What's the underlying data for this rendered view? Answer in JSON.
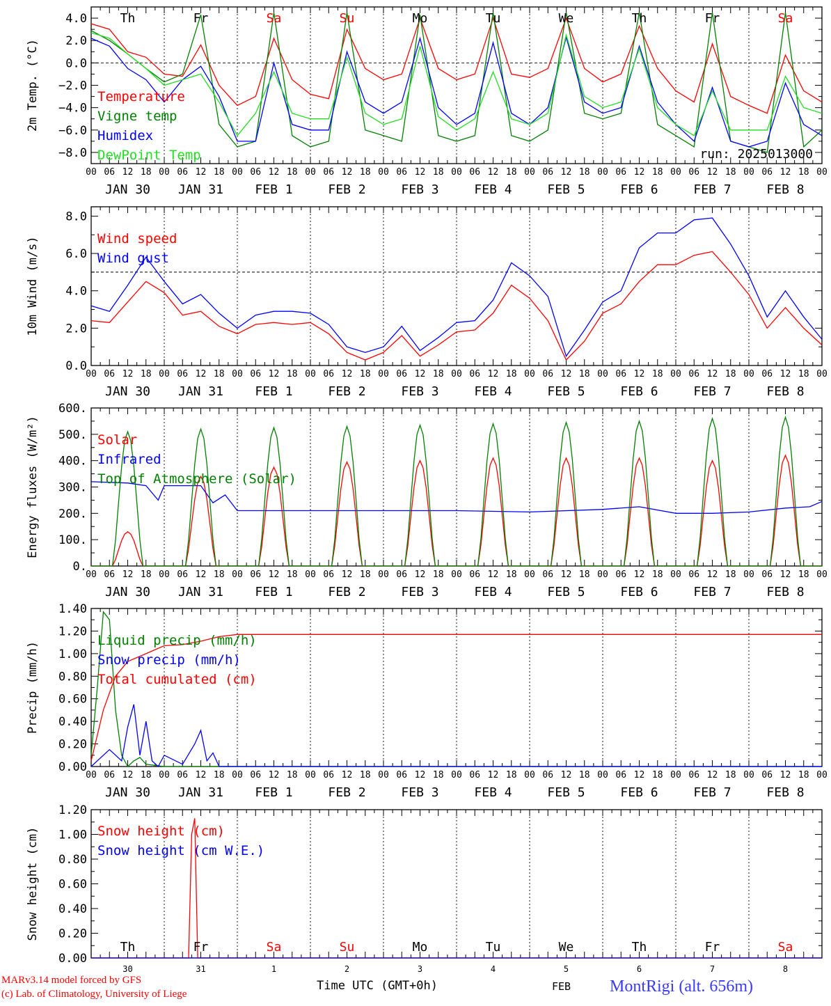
{
  "run_label": "run: 2025013000",
  "footer": {
    "credit_line1": "MARv3.14 model forced by GFS",
    "credit_line2": "(c) Lab. of Climatology, University of Liege",
    "time_axis": "Time UTC (GMT+0h)",
    "month": "FEB",
    "station": "MontRigi (alt. 656m)"
  },
  "hour_ticks": [
    "00",
    "06",
    "12",
    "18"
  ],
  "day_labels": [
    "JAN 30",
    "JAN 31",
    "FEB  1",
    "FEB  2",
    "FEB  3",
    "FEB  4",
    "FEB  5",
    "FEB  6",
    "FEB  7",
    "FEB  8"
  ],
  "weekdays": [
    "Th",
    "Fr",
    "Sa",
    "Su",
    "Mo",
    "Tu",
    "We",
    "Th",
    "Fr",
    "Sa"
  ],
  "day_numbers": [
    "30",
    "31",
    "1",
    "2",
    "3",
    "4",
    "5",
    "6",
    "7",
    "8"
  ],
  "colors": {
    "red": "#ff0000",
    "green": "#008000",
    "blue": "#0000ff",
    "lightgreen": "#22dd22",
    "weekend": "#ff0000",
    "weekday": "#000000"
  },
  "chart_data": [
    {
      "type": "line",
      "ylabel": "2m Temp. (°C)",
      "xlim": [
        0,
        240
      ],
      "ylim": [
        -9,
        5
      ],
      "yticks": [
        -8,
        -6,
        -4,
        -2,
        0,
        2,
        4
      ],
      "ytick_labels": [
        "−8.0",
        "−6.0",
        "−4.0",
        "−2.0",
        "0.0",
        "2.0",
        "4.0"
      ],
      "reference_line": 0,
      "series": [
        {
          "name": "Temperature",
          "color": "red",
          "x": [
            0,
            6,
            12,
            18,
            24,
            30,
            36,
            42,
            48,
            54,
            60,
            66,
            72,
            78,
            84,
            90,
            96,
            102,
            108,
            114,
            120,
            126,
            132,
            138,
            144,
            150,
            156,
            162,
            168,
            174,
            180,
            186,
            192,
            198,
            204,
            210,
            216,
            222,
            228,
            234,
            240
          ],
          "y": [
            3.5,
            3.0,
            1.0,
            0.5,
            -1.0,
            -1.2,
            1.6,
            -2.0,
            -3.8,
            -3.0,
            2.2,
            -1.5,
            -2.8,
            -3.2,
            3.0,
            -0.5,
            -1.5,
            -1.0,
            4.0,
            -0.5,
            -1.5,
            -1.0,
            4.0,
            -1.0,
            -1.3,
            -0.5,
            4.0,
            -0.5,
            -1.7,
            -1.0,
            3.3,
            -0.5,
            -2.5,
            -3.5,
            1.7,
            -3.0,
            -3.8,
            -4.5,
            0.7,
            -2.5,
            -3.5
          ]
        },
        {
          "name": "Vigne temp",
          "color": "green",
          "x": [
            0,
            6,
            12,
            18,
            24,
            30,
            36,
            42,
            48,
            54,
            60,
            66,
            72,
            78,
            84,
            90,
            96,
            102,
            108,
            114,
            120,
            126,
            132,
            138,
            144,
            150,
            156,
            162,
            168,
            174,
            180,
            186,
            192,
            198,
            204,
            210,
            216,
            222,
            228,
            234,
            240
          ],
          "y": [
            2.9,
            2.0,
            0.8,
            -0.5,
            -1.7,
            -1.0,
            4.3,
            -5.5,
            -7.5,
            -7.0,
            4.5,
            -6.5,
            -7.5,
            -7.0,
            4.5,
            -6.0,
            -6.5,
            -7.0,
            4.3,
            -6.5,
            -7.0,
            -6.5,
            4.5,
            -6.5,
            -7.0,
            -6.0,
            4.5,
            -4.5,
            -5.0,
            -4.5,
            4.5,
            -5.5,
            -6.5,
            -7.5,
            4.5,
            -7.0,
            -7.5,
            -8.0,
            4.5,
            -7.5,
            -6.0
          ]
        },
        {
          "name": "Humidex",
          "color": "blue",
          "x": [
            0,
            6,
            12,
            18,
            24,
            30,
            36,
            42,
            48,
            54,
            60,
            66,
            72,
            78,
            84,
            90,
            96,
            102,
            108,
            114,
            120,
            126,
            132,
            138,
            144,
            150,
            156,
            162,
            168,
            174,
            180,
            186,
            192,
            198,
            204,
            210,
            216,
            222,
            228,
            234,
            240
          ],
          "y": [
            2.2,
            1.5,
            -0.5,
            -1.5,
            -3.5,
            -1.5,
            -0.3,
            -3.0,
            -7.0,
            -7.0,
            0.0,
            -5.5,
            -6.0,
            -6.0,
            1.0,
            -3.5,
            -4.5,
            -3.5,
            2.2,
            -4.0,
            -5.5,
            -4.5,
            1.8,
            -4.5,
            -5.5,
            -4.0,
            2.3,
            -3.5,
            -4.5,
            -4.0,
            1.5,
            -3.5,
            -5.5,
            -7.0,
            -2.2,
            -7.0,
            -7.5,
            -7.0,
            -1.8,
            -5.5,
            -6.5
          ]
        },
        {
          "name": "DewPoint Temp",
          "color": "lightgreen",
          "x": [
            0,
            6,
            12,
            18,
            24,
            30,
            36,
            42,
            48,
            54,
            60,
            66,
            72,
            78,
            84,
            90,
            96,
            102,
            108,
            114,
            120,
            126,
            132,
            138,
            144,
            150,
            156,
            162,
            168,
            174,
            180,
            186,
            192,
            198,
            204,
            210,
            216,
            222,
            228,
            234,
            240
          ],
          "y": [
            2.7,
            2.2,
            0.8,
            -0.5,
            -2.0,
            -1.5,
            -1.0,
            -3.5,
            -6.5,
            -4.5,
            -0.8,
            -4.5,
            -5.0,
            -5.0,
            0.5,
            -4.5,
            -5.5,
            -5.0,
            1.5,
            -4.8,
            -6.0,
            -5.0,
            -0.8,
            -5.0,
            -5.5,
            -4.5,
            2.5,
            -3.0,
            -4.0,
            -3.5,
            1.3,
            -4.0,
            -5.5,
            -6.5,
            -2.5,
            -6.0,
            -6.0,
            -6.0,
            -1.2,
            -4.0,
            -4.5
          ]
        }
      ]
    },
    {
      "type": "line",
      "ylabel": "10m Wind (m/s)",
      "xlim": [
        0,
        240
      ],
      "ylim": [
        0,
        8.5
      ],
      "yticks": [
        0,
        2,
        4,
        6,
        8
      ],
      "ytick_labels": [
        "0.0",
        "2.0",
        "4.0",
        "6.0",
        "8.0"
      ],
      "reference_line": 5,
      "series": [
        {
          "name": "Wind speed",
          "color": "red",
          "x": [
            0,
            6,
            12,
            18,
            24,
            30,
            36,
            42,
            48,
            54,
            60,
            66,
            72,
            78,
            84,
            90,
            96,
            102,
            108,
            114,
            120,
            126,
            132,
            138,
            144,
            150,
            156,
            162,
            168,
            174,
            180,
            186,
            192,
            198,
            204,
            210,
            216,
            222,
            228,
            234,
            240
          ],
          "y": [
            2.4,
            2.3,
            3.4,
            4.5,
            3.9,
            2.7,
            2.9,
            2.1,
            1.7,
            2.2,
            2.3,
            2.2,
            2.3,
            1.7,
            0.7,
            0.3,
            0.7,
            1.6,
            0.5,
            1.1,
            1.8,
            1.9,
            2.8,
            4.3,
            3.6,
            2.4,
            0.3,
            1.3,
            2.8,
            3.3,
            4.5,
            5.4,
            5.4,
            5.9,
            6.1,
            5.0,
            3.8,
            2.0,
            3.1,
            2.0,
            1.1
          ]
        },
        {
          "name": "Wind gust",
          "color": "blue",
          "x": [
            0,
            6,
            12,
            18,
            24,
            30,
            36,
            42,
            48,
            54,
            60,
            66,
            72,
            78,
            84,
            90,
            96,
            102,
            108,
            114,
            120,
            126,
            132,
            138,
            144,
            150,
            156,
            162,
            168,
            174,
            180,
            186,
            192,
            198,
            204,
            210,
            216,
            222,
            228,
            234,
            240
          ],
          "y": [
            3.2,
            2.9,
            4.3,
            5.8,
            4.5,
            3.3,
            3.8,
            2.8,
            2.0,
            2.7,
            2.9,
            2.9,
            2.8,
            2.2,
            1.0,
            0.7,
            1.0,
            2.1,
            0.8,
            1.5,
            2.3,
            2.4,
            3.5,
            5.5,
            4.8,
            3.7,
            0.5,
            1.9,
            3.4,
            4.0,
            6.3,
            7.1,
            7.1,
            7.8,
            7.9,
            6.5,
            4.8,
            2.6,
            4.0,
            2.6,
            1.4
          ]
        }
      ]
    },
    {
      "type": "line",
      "ylabel": "Energy fluxes (W/m²)",
      "xlim": [
        0,
        240
      ],
      "ylim": [
        0,
        600
      ],
      "yticks": [
        0,
        100,
        200,
        300,
        400,
        500,
        600
      ],
      "ytick_labels": [
        "0.",
        "100.",
        "200.",
        "300.",
        "400.",
        "500.",
        "600."
      ],
      "series": [
        {
          "name": "Solar",
          "color": "red",
          "peaks": [
            130,
            340,
            375,
            395,
            400,
            410,
            410,
            410,
            400,
            420,
            410
          ]
        },
        {
          "name": "Infrared",
          "color": "blue",
          "x": [
            0,
            12,
            18,
            22,
            24,
            36,
            40,
            44,
            48,
            72,
            96,
            120,
            144,
            168,
            180,
            192,
            204,
            216,
            228,
            236,
            240
          ],
          "y": [
            320,
            315,
            305,
            250,
            305,
            305,
            240,
            270,
            210,
            210,
            210,
            210,
            205,
            215,
            225,
            200,
            200,
            205,
            220,
            225,
            245
          ]
        },
        {
          "name": "Top of Atmosphere (Solar)",
          "color": "green",
          "peaks": [
            510,
            520,
            525,
            530,
            535,
            540,
            545,
            550,
            560,
            565,
            570
          ]
        }
      ]
    },
    {
      "type": "line",
      "ylabel": "Precip (mm/h)",
      "xlim": [
        0,
        240
      ],
      "ylim": [
        0,
        1.4
      ],
      "yticks": [
        0,
        0.2,
        0.4,
        0.6,
        0.8,
        1.0,
        1.2,
        1.4
      ],
      "ytick_labels": [
        "0.00",
        "0.20",
        "0.40",
        "0.60",
        "0.80",
        "1.00",
        "1.20",
        "1.40"
      ],
      "series": [
        {
          "name": "Liquid precip (mm/h)",
          "color": "green",
          "x": [
            0,
            2,
            4,
            6,
            8,
            10,
            12,
            14,
            16,
            18,
            24,
            240
          ],
          "y": [
            0.1,
            0.7,
            1.37,
            1.3,
            0.5,
            0.1,
            0.0,
            0.05,
            0.08,
            0.02,
            0.0,
            0.0
          ]
        },
        {
          "name": "Snow precip (mm/h)",
          "color": "blue",
          "x": [
            0,
            6,
            10,
            12,
            14,
            16,
            18,
            20,
            22,
            24,
            30,
            34,
            36,
            38,
            40,
            42,
            48,
            240
          ],
          "y": [
            0.0,
            0.15,
            0.05,
            0.35,
            0.55,
            0.1,
            0.4,
            0.05,
            0.0,
            0.1,
            0.02,
            0.2,
            0.32,
            0.05,
            0.12,
            0.0,
            0.0,
            0.0
          ]
        },
        {
          "name": "Total cumulated (cm)",
          "color": "red",
          "x": [
            0,
            4,
            8,
            12,
            18,
            24,
            30,
            36,
            42,
            48,
            240
          ],
          "y": [
            0.05,
            0.5,
            0.8,
            0.93,
            1.0,
            1.07,
            1.08,
            1.11,
            1.15,
            1.17,
            1.17
          ]
        }
      ]
    },
    {
      "type": "line",
      "ylabel": "Snow height (cm)",
      "xlim": [
        0,
        240
      ],
      "ylim": [
        0,
        1.2
      ],
      "yticks": [
        0,
        0.2,
        0.4,
        0.6,
        0.8,
        1.0,
        1.2
      ],
      "ytick_labels": [
        "0.00",
        "0.20",
        "0.40",
        "0.60",
        "0.80",
        "1.00",
        "1.20"
      ],
      "series": [
        {
          "name": "Snow height (cm)",
          "color": "red",
          "x": [
            0,
            32,
            33,
            34,
            35,
            240
          ],
          "y": [
            0,
            0,
            1.0,
            1.13,
            0,
            0
          ]
        },
        {
          "name": "Snow height (cm W.E.)",
          "color": "blue",
          "x": [
            0,
            240
          ],
          "y": [
            0,
            0
          ]
        }
      ]
    }
  ]
}
